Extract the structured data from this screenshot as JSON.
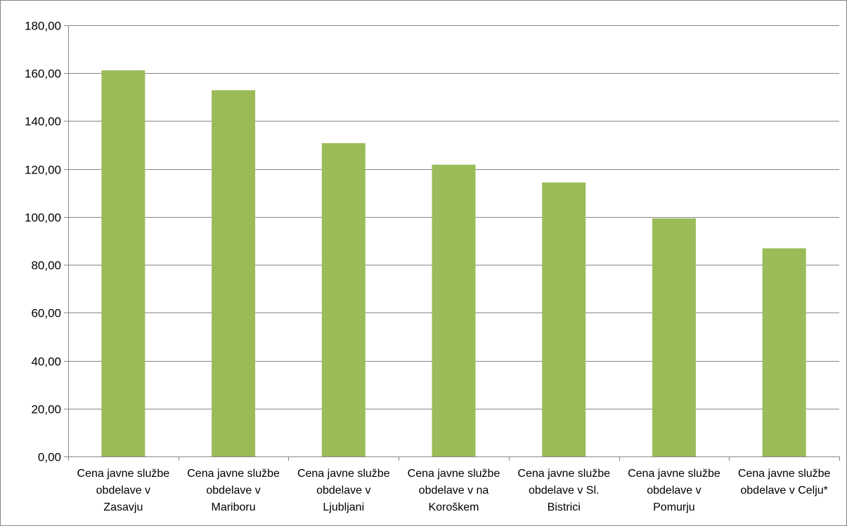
{
  "chart_data": {
    "type": "bar",
    "categories": [
      [
        "Cena javne službe",
        "obdelave v",
        "Zasavju"
      ],
      [
        "Cena javne službe",
        "obdelave v",
        "Mariboru"
      ],
      [
        "Cena javne službe",
        "obdelave v",
        "Ljubljani"
      ],
      [
        "Cena javne službe",
        "obdelave v na",
        "Koroškem"
      ],
      [
        "Cena javne službe",
        "obdelave v Sl.",
        "Bistrici"
      ],
      [
        "Cena javne službe",
        "obdelave v",
        "Pomurju"
      ],
      [
        "Cena javne službe",
        "obdelave v Celju*"
      ]
    ],
    "values": [
      161.2,
      152.9,
      130.8,
      121.8,
      114.4,
      99.4,
      86.9
    ],
    "ylim": [
      0,
      180
    ],
    "yticks": [
      "0,00",
      "20,00",
      "40,00",
      "60,00",
      "80,00",
      "100,00",
      "120,00",
      "140,00",
      "160,00",
      "180,00"
    ],
    "grid": true,
    "legend": "none",
    "colors": {
      "bar": "#9bbb59",
      "grid": "#868686",
      "axis": "#868686",
      "text": "#000000"
    }
  }
}
